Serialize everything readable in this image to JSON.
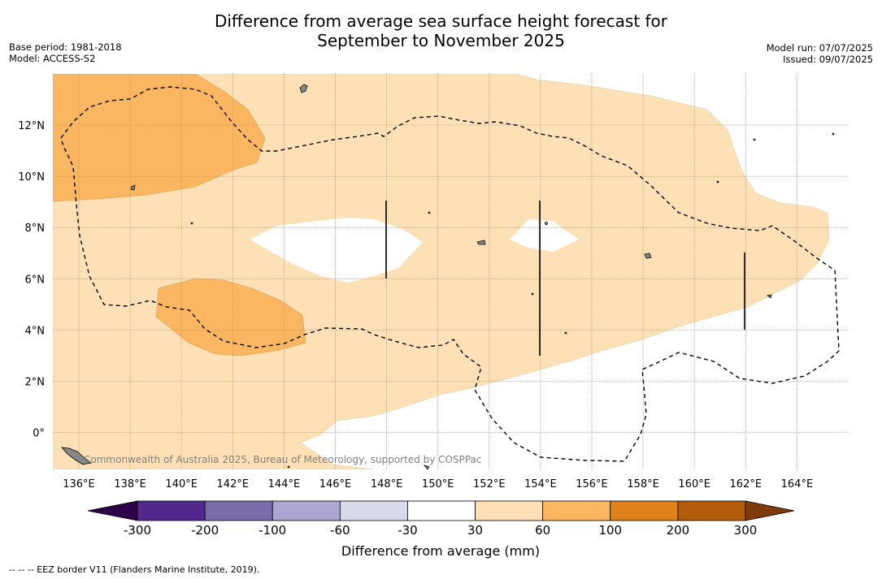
{
  "title_line1": "Difference from average sea surface height forecast for",
  "title_line2": "September to November 2025",
  "base_period": "Base period: 1981-2018",
  "model": "Model: ACCESS-S2",
  "model_run": "Model run: 07/07/2025",
  "issued": "Issued: 09/07/2025",
  "lat_labels": [
    "12°N",
    "10°N",
    "8°N",
    "6°N",
    "4°N",
    "2°N",
    "0°"
  ],
  "lon_labels": [
    "136°E",
    "138°E",
    "140°E",
    "142°E",
    "144°E",
    "146°E",
    "148°E",
    "150°E",
    "152°E",
    "154°E",
    "156°E",
    "158°E",
    "160°E",
    "162°E",
    "164°E"
  ],
  "attribution": "Commonwealth of Australia 2025, Bureau of Meteorology, supported by COSPPac",
  "colorbar": {
    "ticks": [
      "-300",
      "-200",
      "-100",
      "-60",
      "-30",
      "30",
      "60",
      "100",
      "200",
      "300"
    ],
    "colors": [
      "#54278f",
      "#7a6baa",
      "#aba6d0",
      "#d9d9ec",
      "#ffffff",
      "#fde0b6",
      "#fbb661",
      "#e0821b",
      "#b25b0b"
    ],
    "under_color": "#2d0049",
    "over_color": "#7f3b08",
    "label": "Difference from average (mm)"
  },
  "footer": "--  --  -- EEZ border V11 (Flanders Marine Institute, 2019).",
  "colors": {
    "light_orange": "#fde0b6",
    "mid_orange": "#fbb661"
  }
}
